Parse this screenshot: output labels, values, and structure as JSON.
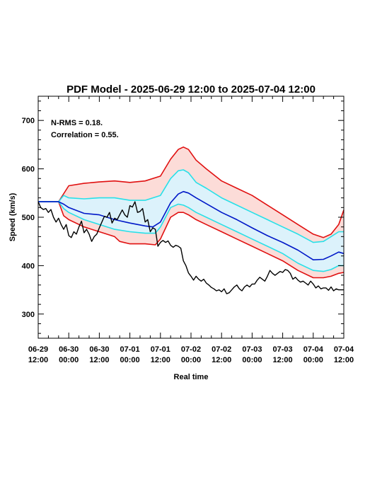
{
  "chart_data": {
    "type": "area",
    "title": "PDF Model - 2025-06-29 12:00 to 2025-07-04 12:00",
    "xlabel": "Real time",
    "ylabel": "Speed (km/s)",
    "annotations": [
      "N-RMS = 0.18.",
      "Correlation = 0.55."
    ],
    "xlim": [
      0,
      120
    ],
    "ylim": [
      250,
      750
    ],
    "x_unit": "hours since 06-29 12:00",
    "x_ticks": [
      {
        "x": 0,
        "date": "06-29",
        "time": "12:00"
      },
      {
        "x": 12,
        "date": "06-30",
        "time": "00:00"
      },
      {
        "x": 24,
        "date": "06-30",
        "time": "12:00"
      },
      {
        "x": 36,
        "date": "07-01",
        "time": "00:00"
      },
      {
        "x": 48,
        "date": "07-01",
        "time": "12:00"
      },
      {
        "x": 60,
        "date": "07-02",
        "time": "00:00"
      },
      {
        "x": 72,
        "date": "07-02",
        "time": "12:00"
      },
      {
        "x": 84,
        "date": "07-03",
        "time": "00:00"
      },
      {
        "x": 96,
        "date": "07-03",
        "time": "12:00"
      },
      {
        "x": 108,
        "date": "07-04",
        "time": "00:00"
      },
      {
        "x": 120,
        "date": "07-04",
        "time": "12:00"
      }
    ],
    "y_ticks": [
      300,
      400,
      500,
      600,
      700
    ],
    "colors": {
      "observed": "#000000",
      "median": "#0018c8",
      "inner_band": "#28e0e8",
      "outer_band": "#e01010",
      "outer_fill": "#fcdcd8",
      "inner_fill": "#dcf2fb"
    },
    "series": [
      {
        "key": "upper_outer",
        "x": [
          0,
          8,
          12,
          18,
          24,
          30,
          36,
          42,
          48,
          52,
          55,
          57,
          59,
          62,
          66,
          72,
          78,
          84,
          90,
          96,
          102,
          108,
          112,
          115,
          118,
          120
        ],
        "y": [
          532,
          532,
          565,
          570,
          573,
          575,
          572,
          575,
          585,
          620,
          640,
          645,
          640,
          618,
          600,
          575,
          560,
          545,
          525,
          505,
          485,
          465,
          458,
          465,
          485,
          515
        ]
      },
      {
        "key": "upper_inner",
        "x": [
          0,
          8,
          10,
          12,
          18,
          24,
          30,
          36,
          42,
          48,
          52,
          55,
          57,
          59,
          62,
          66,
          72,
          78,
          84,
          90,
          96,
          102,
          108,
          112,
          115,
          118,
          120
        ],
        "y": [
          532,
          532,
          545,
          540,
          538,
          540,
          540,
          535,
          535,
          545,
          580,
          596,
          598,
          592,
          572,
          560,
          540,
          525,
          510,
          495,
          480,
          465,
          448,
          450,
          460,
          470,
          470
        ]
      },
      {
        "key": "median",
        "x": [
          0,
          8,
          10,
          12,
          18,
          24,
          30,
          36,
          42,
          45,
          48,
          52,
          55,
          57,
          59,
          62,
          66,
          72,
          78,
          84,
          90,
          96,
          102,
          108,
          112,
          115,
          118,
          120
        ],
        "y": [
          532,
          532,
          527,
          520,
          508,
          505,
          495,
          488,
          482,
          480,
          490,
          530,
          548,
          553,
          550,
          540,
          528,
          510,
          495,
          478,
          462,
          448,
          432,
          412,
          413,
          420,
          428,
          425
        ]
      },
      {
        "key": "lower_inner",
        "x": [
          0,
          8,
          10,
          12,
          18,
          24,
          30,
          36,
          42,
          46,
          48,
          52,
          55,
          57,
          59,
          62,
          66,
          72,
          78,
          84,
          90,
          96,
          102,
          108,
          112,
          115,
          118,
          120
        ],
        "y": [
          532,
          532,
          518,
          510,
          495,
          485,
          475,
          470,
          467,
          467,
          480,
          520,
          527,
          525,
          520,
          510,
          500,
          485,
          470,
          455,
          440,
          425,
          405,
          390,
          388,
          392,
          400,
          400
        ]
      },
      {
        "key": "lower_outer",
        "x": [
          0,
          8,
          10,
          12,
          18,
          24,
          30,
          32,
          36,
          42,
          46,
          48,
          52,
          55,
          57,
          59,
          62,
          66,
          72,
          78,
          84,
          90,
          96,
          102,
          108,
          112,
          115,
          118,
          120
        ],
        "y": [
          532,
          532,
          503,
          495,
          480,
          470,
          460,
          450,
          445,
          445,
          443,
          455,
          500,
          510,
          510,
          505,
          495,
          485,
          470,
          455,
          440,
          425,
          410,
          390,
          375,
          375,
          378,
          384,
          386
        ]
      },
      {
        "key": "observed",
        "x": [
          0,
          1,
          2,
          3,
          4,
          5,
          6,
          7,
          8,
          9,
          10,
          11,
          12,
          13,
          14,
          15,
          16,
          17,
          18,
          19,
          20,
          21,
          22,
          23,
          24,
          25,
          26,
          27,
          28,
          29,
          30,
          31,
          32,
          33,
          34,
          35,
          36,
          37,
          38,
          39,
          40,
          41,
          42,
          43,
          44,
          45,
          46,
          47,
          48,
          49,
          50,
          51,
          52,
          53,
          54,
          55,
          56,
          57,
          58,
          59,
          60,
          61,
          62,
          63,
          64,
          65,
          66,
          67,
          68,
          69,
          70,
          71,
          72,
          73,
          74,
          75,
          76,
          77,
          78,
          79,
          80,
          81,
          82,
          83,
          84,
          85,
          86,
          87,
          88,
          89,
          90,
          91,
          92,
          93,
          94,
          95,
          96,
          97,
          98,
          99,
          100,
          101,
          102,
          103,
          104,
          105,
          106,
          107,
          108,
          109,
          110,
          111,
          112,
          113,
          114,
          115,
          116,
          117,
          118,
          119,
          120
        ],
        "y": [
          532,
          520,
          516,
          518,
          510,
          516,
          500,
          490,
          498,
          485,
          475,
          485,
          462,
          458,
          470,
          465,
          480,
          492,
          468,
          475,
          465,
          450,
          460,
          465,
          478,
          490,
          502,
          500,
          510,
          488,
          498,
          495,
          505,
          515,
          505,
          500,
          524,
          521,
          532,
          510,
          512,
          518,
          490,
          495,
          470,
          478,
          475,
          440,
          448,
          452,
          448,
          451,
          442,
          438,
          442,
          440,
          436,
          410,
          400,
          385,
          378,
          370,
          378,
          372,
          368,
          372,
          364,
          360,
          355,
          352,
          348,
          350,
          346,
          352,
          342,
          344,
          350,
          356,
          360,
          352,
          348,
          356,
          360,
          356,
          362,
          362,
          370,
          376,
          372,
          368,
          378,
          390,
          384,
          380,
          384,
          388,
          386,
          392,
          390,
          384,
          372,
          376,
          370,
          366,
          368,
          364,
          360,
          368,
          362,
          354,
          358,
          352,
          354,
          354,
          349,
          356,
          348,
          352,
          350,
          350,
          350
        ]
      }
    ]
  }
}
